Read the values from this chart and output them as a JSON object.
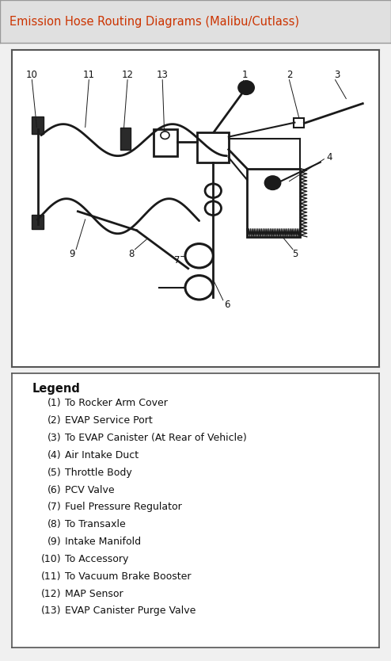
{
  "title": "Emission Hose Routing Diagrams (Malibu/Cutlass)",
  "title_color": "#cc3300",
  "title_bg": "#e0e0e0",
  "bg_color": "#f0f0f0",
  "diagram_bg": "#ffffff",
  "legend_bg": "#ffffff",
  "legend_title": "Legend",
  "legend_items": [
    [
      "(1)",
      "To Rocker Arm Cover"
    ],
    [
      "(2)",
      "EVAP Service Port"
    ],
    [
      "(3)",
      "To EVAP Canister (At Rear of Vehicle)"
    ],
    [
      "(4)",
      "Air Intake Duct"
    ],
    [
      "(5)",
      "Throttle Body"
    ],
    [
      "(6)",
      "PCV Valve"
    ],
    [
      "(7)",
      "Fuel Pressure Regulator"
    ],
    [
      "(8)",
      "To Transaxle"
    ],
    [
      "(9)",
      "Intake Manifold"
    ],
    [
      "(10)",
      "To Accessory"
    ],
    [
      "(11)",
      "To Vacuum Brake Booster"
    ],
    [
      "(12)",
      "MAP Sensor"
    ],
    [
      "(13)",
      "EVAP Canister Purge Valve"
    ]
  ],
  "border_color": "#999999",
  "line_color": "#1a1a1a",
  "label_fontsize": 8.5,
  "legend_fontsize": 9.0,
  "legend_title_fontsize": 10.5
}
